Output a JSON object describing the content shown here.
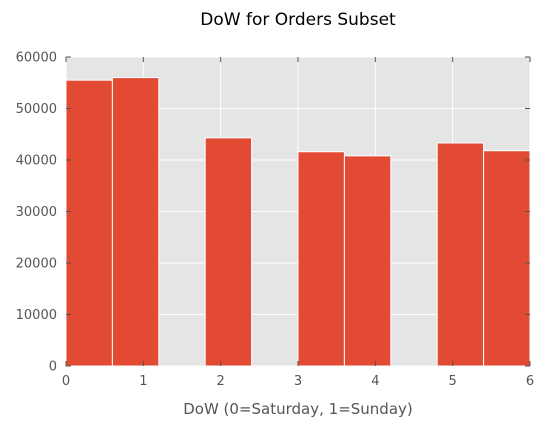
{
  "chart_data": {
    "type": "bar",
    "title": "DoW for Orders Subset",
    "xlabel": "DoW (0=Saturday, 1=Sunday)",
    "ylabel": "",
    "xlim": [
      0,
      6
    ],
    "ylim": [
      0,
      60000
    ],
    "x_ticks": [
      "0",
      "1",
      "2",
      "3",
      "4",
      "5",
      "6"
    ],
    "y_ticks": [
      "0",
      "10000",
      "20000",
      "30000",
      "40000",
      "50000",
      "60000"
    ],
    "bins": [
      {
        "x0": 0.0,
        "x1": 0.6,
        "value": 55500
      },
      {
        "x0": 0.6,
        "x1": 1.2,
        "value": 56000
      },
      {
        "x0": 1.2,
        "x1": 1.8,
        "value": 0
      },
      {
        "x0": 1.8,
        "x1": 2.4,
        "value": 44300
      },
      {
        "x0": 2.4,
        "x1": 3.0,
        "value": 0
      },
      {
        "x0": 3.0,
        "x1": 3.6,
        "value": 41600
      },
      {
        "x0": 3.6,
        "x1": 4.2,
        "value": 40800
      },
      {
        "x0": 4.2,
        "x1": 4.8,
        "value": 0
      },
      {
        "x0": 4.8,
        "x1": 5.4,
        "value": 43300
      },
      {
        "x0": 5.4,
        "x1": 6.0,
        "value": 41800
      }
    ],
    "grid": true,
    "colors": {
      "bar": "#E24A33",
      "background": "#E5E5E5",
      "grid": "#FFFFFF",
      "text": "#555555"
    }
  }
}
